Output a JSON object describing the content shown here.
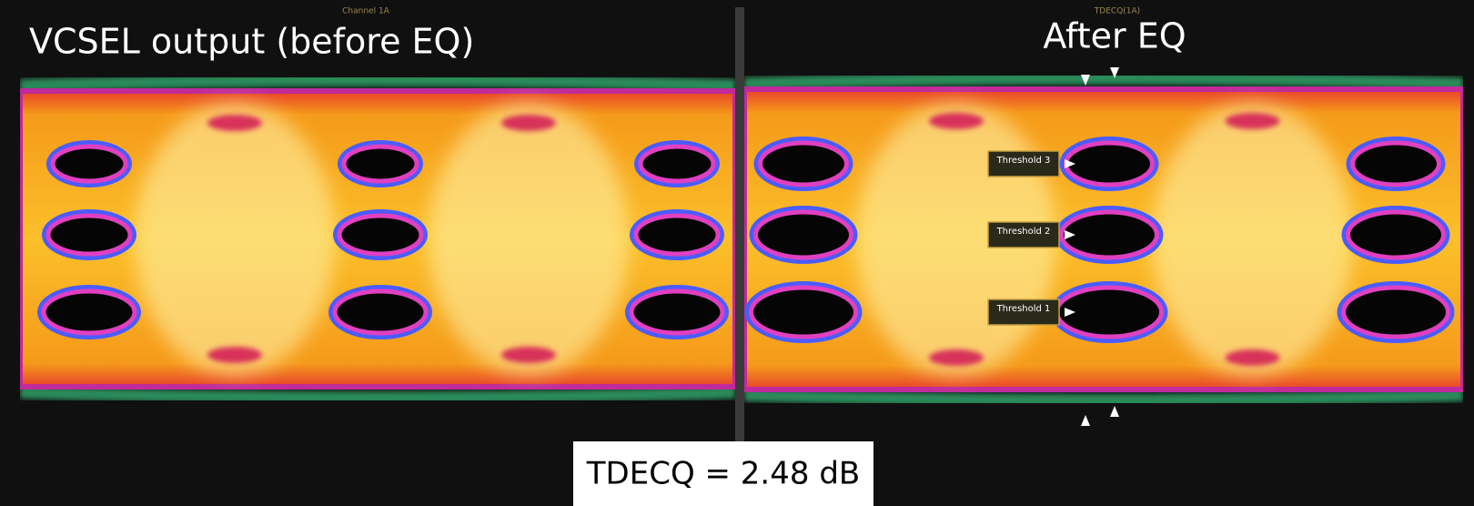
{
  "panels": [
    {
      "title": "VCSEL output (before EQ)",
      "tab": "Channel 1A"
    },
    {
      "title": "After EQ",
      "tab": "TDECQ(1A)",
      "markers": [
        "Threshold 3",
        "Threshold 2",
        "Threshold 1"
      ]
    }
  ],
  "result": "TDECQ = 2.48 dB"
}
